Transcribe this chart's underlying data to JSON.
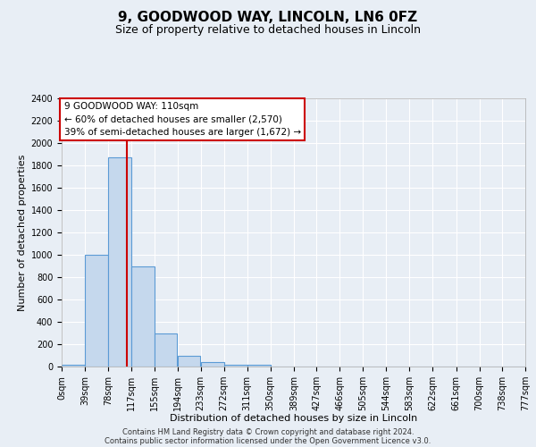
{
  "title": "9, GOODWOOD WAY, LINCOLN, LN6 0FZ",
  "subtitle": "Size of property relative to detached houses in Lincoln",
  "xlabel": "Distribution of detached houses by size in Lincoln",
  "ylabel": "Number of detached properties",
  "bin_edges": [
    0,
    39,
    78,
    117,
    155,
    194,
    233,
    272,
    311,
    350,
    389,
    427,
    466,
    505,
    544,
    583,
    622,
    661,
    700,
    738,
    777
  ],
  "bin_labels": [
    "0sqm",
    "39sqm",
    "78sqm",
    "117sqm",
    "155sqm",
    "194sqm",
    "233sqm",
    "272sqm",
    "311sqm",
    "350sqm",
    "389sqm",
    "427sqm",
    "466sqm",
    "505sqm",
    "544sqm",
    "583sqm",
    "622sqm",
    "661sqm",
    "700sqm",
    "738sqm",
    "777sqm"
  ],
  "bar_heights": [
    20,
    1000,
    1870,
    900,
    300,
    100,
    40,
    20,
    20,
    0,
    0,
    0,
    0,
    0,
    0,
    0,
    0,
    0,
    0,
    0
  ],
  "bar_color": "#c5d8ed",
  "bar_edge_color": "#5b9bd5",
  "vline_x": 110,
  "vline_color": "#cc0000",
  "ylim": [
    0,
    2400
  ],
  "yticks": [
    0,
    200,
    400,
    600,
    800,
    1000,
    1200,
    1400,
    1600,
    1800,
    2000,
    2200,
    2400
  ],
  "annotation_line1": "9 GOODWOOD WAY: 110sqm",
  "annotation_line2": "← 60% of detached houses are smaller (2,570)",
  "annotation_line3": "39% of semi-detached houses are larger (1,672) →",
  "annotation_box_color": "#ffffff",
  "annotation_box_edge": "#cc0000",
  "footer_line1": "Contains HM Land Registry data © Crown copyright and database right 2024.",
  "footer_line2": "Contains public sector information licensed under the Open Government Licence v3.0.",
  "background_color": "#e8eef5",
  "plot_bg_color": "#e8eef5",
  "title_fontsize": 11,
  "subtitle_fontsize": 9,
  "axis_label_fontsize": 8,
  "tick_fontsize": 7,
  "annotation_fontsize": 7.5
}
